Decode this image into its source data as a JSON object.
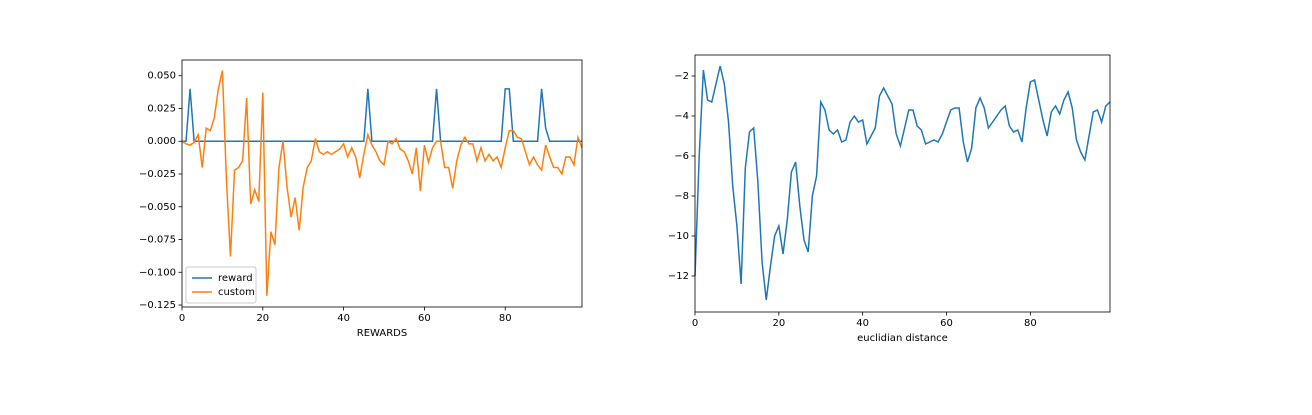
{
  "chart_data": [
    {
      "type": "line",
      "x_label": "REWARDS",
      "x": [
        0,
        1,
        2,
        3,
        4,
        5,
        6,
        7,
        8,
        9,
        10,
        11,
        12,
        13,
        14,
        15,
        16,
        17,
        18,
        19,
        20,
        21,
        22,
        23,
        24,
        25,
        26,
        27,
        28,
        29,
        30,
        31,
        32,
        33,
        34,
        35,
        36,
        37,
        38,
        39,
        40,
        41,
        42,
        43,
        44,
        45,
        46,
        47,
        48,
        49,
        50,
        51,
        52,
        53,
        54,
        55,
        56,
        57,
        58,
        59,
        60,
        61,
        62,
        63,
        64,
        65,
        66,
        67,
        68,
        69,
        70,
        71,
        72,
        73,
        74,
        75,
        76,
        77,
        78,
        79,
        80,
        81,
        82,
        83,
        84,
        85,
        86,
        87,
        88,
        89,
        90,
        91,
        92,
        93,
        94,
        95,
        96,
        97,
        98,
        99
      ],
      "series": [
        {
          "name": "reward",
          "color": "#1f77b4",
          "values": [
            0,
            0,
            0.04,
            0,
            0,
            0,
            0,
            0,
            0,
            0,
            0,
            0,
            0,
            0,
            0,
            0,
            0,
            0,
            0,
            0,
            0,
            0,
            0,
            0,
            0,
            0,
            0,
            0,
            0,
            0,
            0,
            0,
            0,
            0,
            0,
            0,
            0,
            0,
            0,
            0,
            0,
            0,
            0,
            0,
            0,
            0,
            0.04,
            0,
            0,
            0,
            0,
            0,
            0,
            0,
            0,
            0,
            0,
            0,
            0,
            0,
            0,
            0,
            0,
            0.04,
            0,
            0,
            0,
            0,
            0,
            0,
            0,
            0,
            0,
            0,
            0,
            0,
            0,
            0,
            0,
            0,
            0.04,
            0.04,
            0,
            0,
            0,
            0,
            0,
            0,
            0,
            0.04,
            0.01,
            0,
            0,
            0,
            0,
            0,
            0,
            0,
            0,
            0
          ]
        },
        {
          "name": "custom",
          "color": "#ff7f0e",
          "values": [
            0,
            -0.002,
            -0.003,
            -0.001,
            0.005,
            -0.02,
            0.01,
            0.008,
            0.018,
            0.04,
            0.054,
            -0.03,
            -0.088,
            -0.022,
            -0.02,
            -0.015,
            0.033,
            -0.048,
            -0.037,
            -0.046,
            0.037,
            -0.118,
            -0.069,
            -0.079,
            -0.02,
            0,
            -0.035,
            -0.058,
            -0.043,
            -0.068,
            -0.035,
            -0.02,
            -0.015,
            0.002,
            -0.008,
            -0.01,
            -0.008,
            -0.01,
            -0.008,
            -0.006,
            -0.002,
            -0.012,
            -0.005,
            -0.012,
            -0.028,
            -0.01,
            0.005,
            -0.003,
            -0.008,
            -0.015,
            -0.018,
            0,
            -0.002,
            0.002,
            -0.006,
            -0.008,
            -0.015,
            -0.025,
            -0.005,
            -0.038,
            -0.003,
            -0.016,
            -0.005,
            0,
            0,
            -0.02,
            -0.02,
            -0.036,
            -0.015,
            -0.003,
            0.003,
            -0.002,
            -0.002,
            -0.015,
            -0.005,
            -0.015,
            -0.01,
            -0.015,
            -0.012,
            -0.02,
            -0.005,
            0.008,
            0.008,
            0.003,
            0.002,
            -0.008,
            -0.018,
            -0.012,
            -0.018,
            -0.022,
            -0.003,
            -0.012,
            -0.02,
            -0.02,
            -0.025,
            -0.012,
            -0.012,
            -0.018,
            0.003,
            -0.005
          ]
        }
      ],
      "xlim": [
        0,
        99
      ],
      "xticks": [
        0,
        20,
        40,
        60,
        80
      ],
      "ylim": [
        -0.1265,
        0.062
      ],
      "yticks": [
        {
          "value": -0.125,
          "label": "−0.125"
        },
        {
          "value": -0.1,
          "label": "−0.100"
        },
        {
          "value": -0.075,
          "label": "−0.075"
        },
        {
          "value": -0.05,
          "label": "−0.050"
        },
        {
          "value": -0.025,
          "label": "−0.025"
        },
        {
          "value": 0,
          "label": "0.000"
        },
        {
          "value": 0.025,
          "label": "0.025"
        },
        {
          "value": 0.05,
          "label": "0.050"
        }
      ],
      "legend": "lower left"
    },
    {
      "type": "line",
      "x_label": "euclidian distance",
      "x": [
        0,
        1,
        2,
        3,
        4,
        5,
        6,
        7,
        8,
        9,
        10,
        11,
        12,
        13,
        14,
        15,
        16,
        17,
        18,
        19,
        20,
        21,
        22,
        23,
        24,
        25,
        26,
        27,
        28,
        29,
        30,
        31,
        32,
        33,
        34,
        35,
        36,
        37,
        38,
        39,
        40,
        41,
        42,
        43,
        44,
        45,
        46,
        47,
        48,
        49,
        50,
        51,
        52,
        53,
        54,
        55,
        56,
        57,
        58,
        59,
        60,
        61,
        62,
        63,
        64,
        65,
        66,
        67,
        68,
        69,
        70,
        71,
        72,
        73,
        74,
        75,
        76,
        77,
        78,
        79,
        80,
        81,
        82,
        83,
        84,
        85,
        86,
        87,
        88,
        89,
        90,
        91,
        92,
        93,
        94,
        95,
        96,
        97,
        98,
        99
      ],
      "series": [
        {
          "color": "#1f77b4",
          "values": [
            -12,
            -6,
            -1.7,
            -3.2,
            -3.3,
            -2.4,
            -1.5,
            -2.4,
            -4.3,
            -7.5,
            -9.5,
            -12.4,
            -6.6,
            -4.8,
            -4.6,
            -7.3,
            -11.3,
            -13.2,
            -11.5,
            -10,
            -9.5,
            -10.9,
            -9.2,
            -6.8,
            -6.3,
            -8.5,
            -10.2,
            -10.8,
            -8,
            -7,
            -3.3,
            -3.7,
            -4.7,
            -4.9,
            -4.7,
            -5.3,
            -5.2,
            -4.3,
            -4,
            -4.3,
            -4.2,
            -5.4,
            -5,
            -4.6,
            -3,
            -2.6,
            -3,
            -3.4,
            -4.9,
            -5.5,
            -4.6,
            -3.7,
            -3.7,
            -4.5,
            -4.7,
            -5.4,
            -5.3,
            -5.2,
            -5.3,
            -4.9,
            -4.3,
            -3.7,
            -3.6,
            -3.6,
            -5.3,
            -6.3,
            -5.6,
            -3.6,
            -3.1,
            -3.6,
            -4.6,
            -4.3,
            -4,
            -3.7,
            -3.5,
            -4.5,
            -4.8,
            -4.7,
            -5.3,
            -3.6,
            -2.3,
            -2.2,
            -3.2,
            -4.2,
            -5,
            -3.8,
            -3.5,
            -3.9,
            -3.2,
            -2.8,
            -3.6,
            -5.2,
            -5.8,
            -6.2,
            -5,
            -3.8,
            -3.7,
            -4.3,
            -3.5,
            -3.3
          ]
        }
      ],
      "xlim": [
        0,
        99
      ],
      "xticks": [
        0,
        20,
        40,
        60,
        80
      ],
      "ylim": [
        -13.8,
        -0.95
      ],
      "yticks": [
        {
          "value": -12,
          "label": "−12"
        },
        {
          "value": -10,
          "label": "−10"
        },
        {
          "value": -8,
          "label": "−8"
        },
        {
          "value": -6,
          "label": "−6"
        },
        {
          "value": -4,
          "label": "−4"
        },
        {
          "value": -2,
          "label": "−2"
        }
      ]
    }
  ]
}
